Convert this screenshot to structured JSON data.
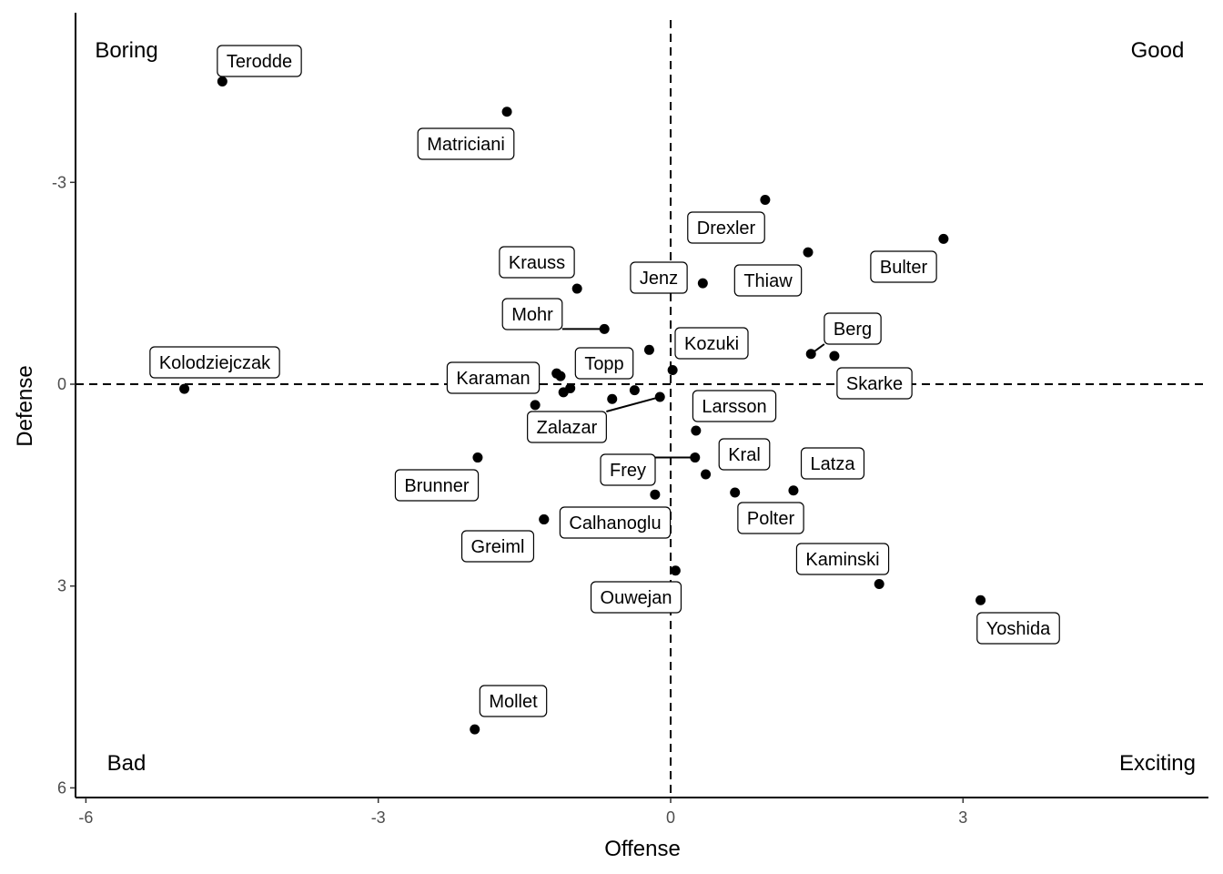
{
  "chart_data": {
    "type": "scatter",
    "title": "",
    "xlabel": "Offense",
    "ylabel": "Defense",
    "xlim": [
      -6.1,
      5.5
    ],
    "ylim": [
      5.85,
      -5.45
    ],
    "y_reversed": true,
    "x_ticks": [
      -6,
      -3,
      0,
      3
    ],
    "x_tick_labels": [
      "-6",
      "-3",
      "0",
      "3"
    ],
    "y_ticks": [
      -3,
      0,
      3,
      6
    ],
    "y_tick_labels": [
      "-3",
      "0",
      "3",
      "6"
    ],
    "reference_lines": {
      "x": 0,
      "y": 0,
      "style": "dashed"
    },
    "grid": false,
    "quadrant_labels": [
      {
        "id": "boring",
        "text": "Boring"
      },
      {
        "id": "good",
        "text": "Good"
      },
      {
        "id": "bad",
        "text": "Bad"
      },
      {
        "id": "exciting",
        "text": "Exciting"
      }
    ],
    "point_color": "#000000",
    "points": [
      {
        "x": -4.6,
        "y": -4.5,
        "label": "Terodde"
      },
      {
        "x": -1.68,
        "y": -4.05,
        "label": "Matriciani"
      },
      {
        "x": 0.97,
        "y": -2.74,
        "label": "Drexler"
      },
      {
        "x": 2.8,
        "y": -2.16,
        "label": "Bulter"
      },
      {
        "x": 1.41,
        "y": -1.96,
        "label": "Thiaw"
      },
      {
        "x": 0.33,
        "y": -1.5,
        "label": "Jenz"
      },
      {
        "x": -0.96,
        "y": -1.42,
        "label": "Krauss"
      },
      {
        "x": -0.68,
        "y": -0.82,
        "label": "Mohr"
      },
      {
        "x": 1.44,
        "y": -0.45,
        "label": "Berg"
      },
      {
        "x": 1.68,
        "y": -0.42,
        "label": "Skarke"
      },
      {
        "x": -0.22,
        "y": -0.51,
        "label": "Kozuki"
      },
      {
        "x": 0.02,
        "y": -0.21,
        "label": "Topp"
      },
      {
        "x": -4.99,
        "y": 0.07,
        "label": "Kolodziejczak"
      },
      {
        "x": -1.17,
        "y": -0.16,
        "label": "Karaman"
      },
      {
        "x": -1.13,
        "y": -0.12,
        "label": ""
      },
      {
        "x": -1.1,
        "y": 0.12,
        "label": ""
      },
      {
        "x": -1.03,
        "y": 0.06,
        "label": ""
      },
      {
        "x": -1.39,
        "y": 0.31,
        "label": ""
      },
      {
        "x": -0.6,
        "y": 0.22,
        "label": ""
      },
      {
        "x": -0.37,
        "y": 0.09,
        "label": ""
      },
      {
        "x": -0.11,
        "y": 0.19,
        "label": "Zalazar"
      },
      {
        "x": 0.26,
        "y": 0.69,
        "label": "Larsson"
      },
      {
        "x": 0.25,
        "y": 1.09,
        "label": "Frey"
      },
      {
        "x": 0.36,
        "y": 1.34,
        "label": "Kral"
      },
      {
        "x": -1.98,
        "y": 1.09,
        "label": "Brunner"
      },
      {
        "x": 1.26,
        "y": 1.58,
        "label": "Latza"
      },
      {
        "x": 0.66,
        "y": 1.61,
        "label": "Polter"
      },
      {
        "x": -0.16,
        "y": 1.64,
        "label": ""
      },
      {
        "x": -1.3,
        "y": 2.01,
        "label": "Calhanoglu"
      },
      {
        "x": -1.3,
        "y": 2.01,
        "label": "Greiml"
      },
      {
        "x": 0.05,
        "y": 2.77,
        "label": "Ouwejan"
      },
      {
        "x": 2.14,
        "y": 2.97,
        "label": "Kaminski"
      },
      {
        "x": 3.18,
        "y": 3.21,
        "label": "Yoshida"
      },
      {
        "x": -2.01,
        "y": 5.13,
        "label": "Mollet"
      }
    ]
  }
}
